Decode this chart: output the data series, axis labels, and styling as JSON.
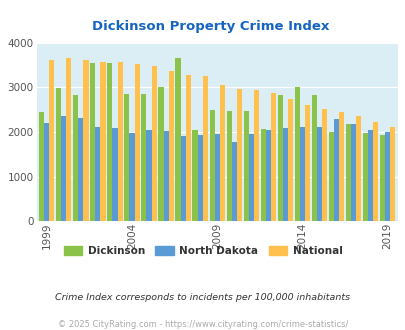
{
  "title": "Dickinson Property Crime Index",
  "title_color": "#1565c0",
  "years": [
    1999,
    2000,
    2001,
    2002,
    2003,
    2004,
    2005,
    2006,
    2007,
    2008,
    2009,
    2010,
    2011,
    2012,
    2013,
    2014,
    2015,
    2016,
    2017,
    2018,
    2019
  ],
  "dickinson": [
    2450,
    2980,
    2840,
    3540,
    3560,
    2860,
    2850,
    3000,
    3650,
    2040,
    2500,
    2480,
    2470,
    2060,
    2840,
    3010,
    2840,
    2000,
    2190,
    1980,
    1930
  ],
  "north_dakota": [
    2210,
    2360,
    2320,
    2110,
    2090,
    1980,
    2040,
    2020,
    1900,
    1930,
    1950,
    1780,
    1960,
    2050,
    2090,
    2120,
    2110,
    2290,
    2170,
    2040,
    2010
  ],
  "national": [
    3610,
    3660,
    3620,
    3580,
    3580,
    3520,
    3490,
    3380,
    3280,
    3250,
    3060,
    2960,
    2940,
    2880,
    2740,
    2600,
    2510,
    2460,
    2360,
    2230,
    2110
  ],
  "dickinson_color": "#8bc34a",
  "north_dakota_color": "#5b9bd5",
  "national_color": "#ffc04d",
  "background_color": "#dceef5",
  "ylim": [
    0,
    4000
  ],
  "yticks": [
    0,
    1000,
    2000,
    3000,
    4000
  ],
  "xtick_years": [
    1999,
    2004,
    2009,
    2014,
    2019
  ],
  "footnote": "Crime Index corresponds to incidents per 100,000 inhabitants",
  "footnote2": "© 2025 CityRating.com - https://www.cityrating.com/crime-statistics/",
  "footnote_color": "#333333",
  "footnote2_color": "#aaaaaa",
  "legend_labels": [
    "Dickinson",
    "North Dakota",
    "National"
  ],
  "figsize": [
    4.06,
    3.3
  ],
  "dpi": 100
}
